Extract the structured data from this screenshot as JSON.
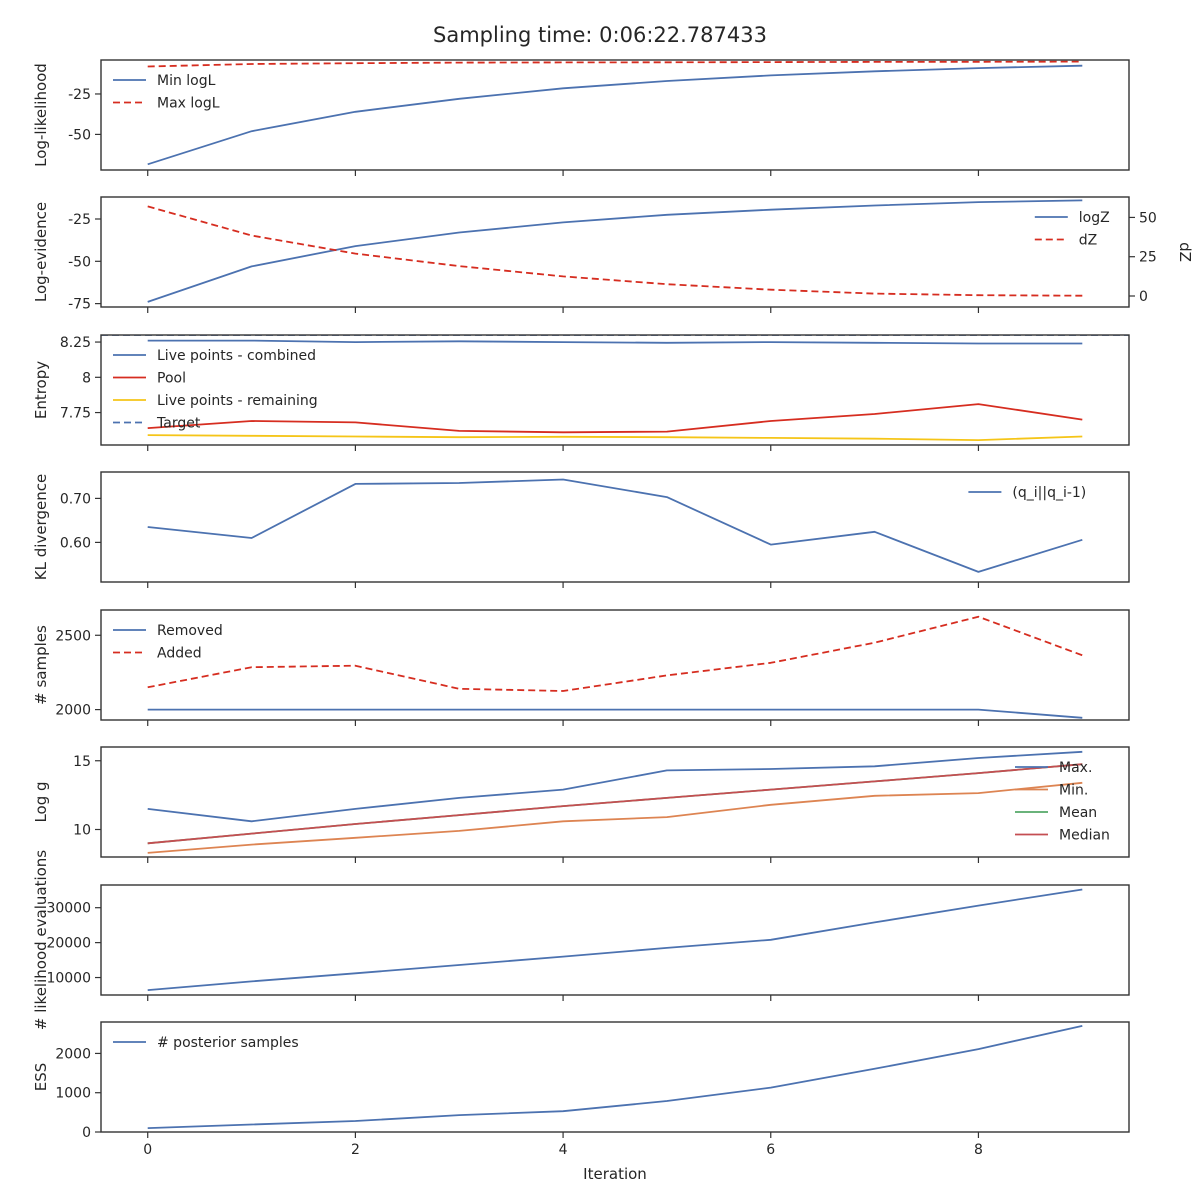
{
  "figure": {
    "title": "Sampling time: 0:06:22.787433",
    "x_label": "Iteration",
    "x_ticks": [
      0,
      2,
      4,
      6,
      8
    ],
    "xlim": [
      -0.45,
      9.45
    ]
  },
  "colors": {
    "blue": "#4c72b0",
    "red": "#d62d20",
    "yellow": "#f5c518",
    "orange": "#dd8452",
    "green": "#55a868",
    "crimson": "#c44e52"
  },
  "chart_data": [
    {
      "type": "line",
      "ylabel": "Log-likelihood",
      "ylim": [
        -72,
        -4
      ],
      "yticks": [
        -50,
        -25
      ],
      "show_x_tick_labels": false,
      "legend_position": "top-left",
      "x": [
        0,
        1,
        2,
        3,
        4,
        5,
        6,
        7,
        8,
        9
      ],
      "series": [
        {
          "name": "Min logL",
          "color": "blue",
          "dash": "solid",
          "values": [
            -68.5,
            -48,
            -36,
            -28,
            -21.5,
            -17,
            -13.5,
            -11,
            -9,
            -7.5
          ]
        },
        {
          "name": "Max logL",
          "color": "red",
          "dash": "dashed",
          "values": [
            -8,
            -6.5,
            -6,
            -5.6,
            -5.5,
            -5.4,
            -5.3,
            -5.2,
            -5.1,
            -5
          ]
        }
      ]
    },
    {
      "type": "line",
      "ylabel": "Log-evidence",
      "ylim": [
        -77,
        -12
      ],
      "yticks": [
        -75,
        -50,
        -25
      ],
      "y2label": "dZ",
      "y2lim": [
        -7,
        63
      ],
      "y2ticks": [
        0,
        25,
        50
      ],
      "show_x_tick_labels": false,
      "legend_position": "top-right",
      "x": [
        0,
        1,
        2,
        3,
        4,
        5,
        6,
        7,
        8,
        9
      ],
      "series": [
        {
          "name": "logZ",
          "color": "blue",
          "dash": "solid",
          "axis": "left",
          "values": [
            -74,
            -53,
            -41,
            -33,
            -27,
            -22.5,
            -19.5,
            -17,
            -15,
            -14
          ]
        },
        {
          "name": "dZ",
          "color": "red",
          "dash": "dashed",
          "axis": "right",
          "values": [
            57,
            38.5,
            27,
            19,
            12.5,
            7.5,
            4,
            1.5,
            0.5,
            0.2
          ]
        }
      ]
    },
    {
      "type": "line",
      "ylabel": "Entropy",
      "ylim": [
        7.52,
        8.3
      ],
      "yticks": [
        7.75,
        8.0,
        8.25
      ],
      "show_x_tick_labels": false,
      "legend_position": "top-left",
      "x": [
        0,
        1,
        2,
        3,
        4,
        5,
        6,
        7,
        8,
        9
      ],
      "series": [
        {
          "name": "Live points - combined",
          "color": "blue",
          "dash": "solid",
          "values": [
            8.26,
            8.26,
            8.25,
            8.255,
            8.25,
            8.245,
            8.25,
            8.245,
            8.24,
            8.24
          ]
        },
        {
          "name": "Pool",
          "color": "red",
          "dash": "solid",
          "values": [
            7.64,
            7.69,
            7.68,
            7.62,
            7.61,
            7.615,
            7.69,
            7.74,
            7.81,
            7.7
          ]
        },
        {
          "name": "Live points - remaining",
          "color": "yellow",
          "dash": "solid",
          "values": [
            7.59,
            7.585,
            7.58,
            7.575,
            7.578,
            7.575,
            7.57,
            7.565,
            7.555,
            7.58
          ]
        },
        {
          "name": "Target",
          "color": "blue",
          "dash": "dashed",
          "hline": 8.3
        }
      ]
    },
    {
      "type": "line",
      "ylabel": "KL divergence",
      "ylim": [
        0.51,
        0.76
      ],
      "yticks": [
        0.6,
        0.7
      ],
      "show_x_tick_labels": false,
      "legend_position": "top-right",
      "x": [
        0,
        1,
        2,
        3,
        4,
        5,
        6,
        7,
        8,
        9
      ],
      "series": [
        {
          "name": "(q_i||q_i-1)",
          "color": "blue",
          "dash": "solid",
          "values": [
            0.635,
            0.61,
            0.733,
            0.735,
            0.743,
            0.703,
            0.595,
            0.624,
            0.533,
            0.606
          ]
        }
      ]
    },
    {
      "type": "line",
      "ylabel": "# samples",
      "ylim": [
        1930,
        2670
      ],
      "yticks": [
        2000,
        2500
      ],
      "show_x_tick_labels": false,
      "legend_position": "top-left",
      "x": [
        0,
        1,
        2,
        3,
        4,
        5,
        6,
        7,
        8,
        9
      ],
      "series": [
        {
          "name": "Removed",
          "color": "blue",
          "dash": "solid",
          "values": [
            2000,
            2000,
            2000,
            2000,
            2000,
            2000,
            2000,
            2000,
            2000,
            1945
          ]
        },
        {
          "name": "Added",
          "color": "red",
          "dash": "dashed",
          "values": [
            2150,
            2285,
            2295,
            2140,
            2125,
            2230,
            2315,
            2450,
            2625,
            2365
          ]
        }
      ]
    },
    {
      "type": "line",
      "ylabel": "Log g",
      "ylim": [
        8,
        16
      ],
      "yticks": [
        10,
        15
      ],
      "show_x_tick_labels": false,
      "legend_position": "right",
      "x": [
        0,
        1,
        2,
        3,
        4,
        5,
        6,
        7,
        8,
        9
      ],
      "series": [
        {
          "name": "Max.",
          "color": "blue",
          "dash": "solid",
          "values": [
            11.5,
            10.6,
            11.5,
            12.3,
            12.9,
            14.3,
            14.4,
            14.6,
            15.2,
            15.65
          ]
        },
        {
          "name": "Min.",
          "color": "orange",
          "dash": "solid",
          "values": [
            8.3,
            8.9,
            9.4,
            9.9,
            10.6,
            10.9,
            11.8,
            12.45,
            12.65,
            13.4
          ]
        },
        {
          "name": "Mean",
          "color": "green",
          "dash": "solid",
          "values": [
            9,
            9.7,
            10.4,
            11.05,
            11.7,
            12.3,
            12.9,
            13.5,
            14.1,
            14.75
          ]
        },
        {
          "name": "Median",
          "color": "crimson",
          "dash": "solid",
          "values": [
            9,
            9.7,
            10.4,
            11.05,
            11.7,
            12.3,
            12.9,
            13.5,
            14.1,
            14.75
          ]
        }
      ]
    },
    {
      "type": "line",
      "ylabel": "# likelihood evaluations",
      "ylim": [
        5000,
        36500
      ],
      "yticks": [
        10000,
        20000,
        30000
      ],
      "show_x_tick_labels": false,
      "x": [
        0,
        1,
        2,
        3,
        4,
        5,
        6,
        7,
        8,
        9
      ],
      "series": [
        {
          "color": "blue",
          "dash": "solid",
          "values": [
            6400,
            8900,
            11200,
            13600,
            16000,
            18500,
            20800,
            25800,
            30600,
            35200
          ]
        }
      ]
    },
    {
      "type": "line",
      "ylabel": "ESS",
      "ylim": [
        0,
        2800
      ],
      "yticks": [
        0,
        1000,
        2000
      ],
      "show_x_tick_labels": true,
      "legend_position": "top-left",
      "x": [
        0,
        1,
        2,
        3,
        4,
        5,
        6,
        7,
        8,
        9
      ],
      "series": [
        {
          "name": "# posterior samples",
          "color": "blue",
          "dash": "solid",
          "values": [
            100,
            190,
            280,
            430,
            530,
            790,
            1130,
            1610,
            2110,
            2700
          ]
        }
      ]
    }
  ]
}
